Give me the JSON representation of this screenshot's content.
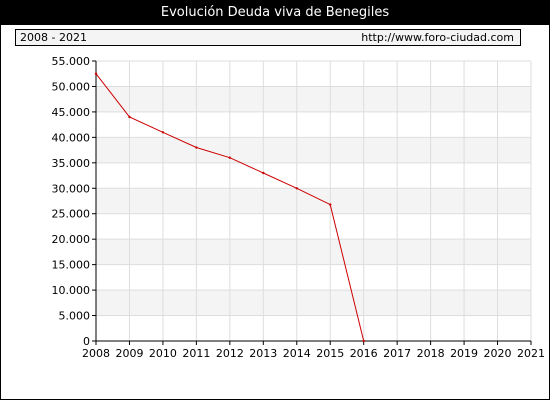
{
  "header": {
    "title": "Evolución Deuda viva de Benegiles",
    "period": "2008 - 2021",
    "source_url": "http://www.foro-ciudad.com"
  },
  "colors": {
    "line": "#cc0000",
    "band": "#f4f4f4",
    "grid": "#dddddd"
  },
  "chart_data": {
    "type": "line",
    "title": "Evolución Deuda viva de Benegiles",
    "xlabel": "",
    "ylabel": "",
    "grid": true,
    "xlim": [
      2008,
      2021
    ],
    "ylim": [
      0,
      55000
    ],
    "x_ticks": [
      "2008",
      "2009",
      "2010",
      "2011",
      "2012",
      "2013",
      "2014",
      "2015",
      "2016",
      "2017",
      "2018",
      "2019",
      "2020",
      "2021"
    ],
    "y_ticks": [
      "0",
      "5.000",
      "10.000",
      "15.000",
      "20.000",
      "25.000",
      "30.000",
      "35.000",
      "40.000",
      "45.000",
      "50.000",
      "55.000"
    ],
    "series": [
      {
        "x": [
          2008,
          2009,
          2010,
          2011,
          2012,
          2013,
          2014,
          2015,
          2016
        ],
        "values": [
          52500,
          44000,
          41000,
          38000,
          36000,
          33000,
          30000,
          26800,
          0
        ]
      }
    ]
  }
}
